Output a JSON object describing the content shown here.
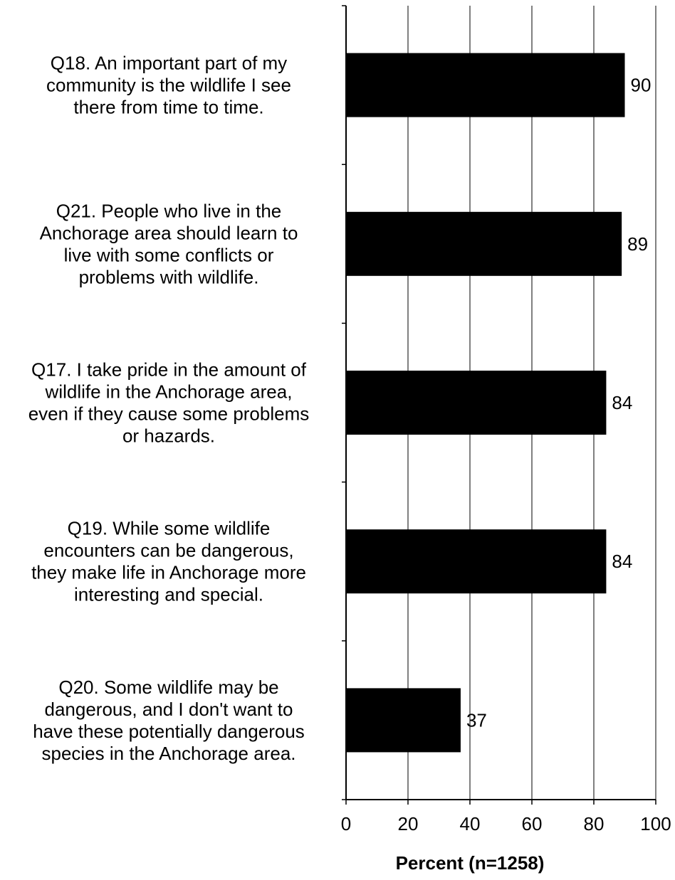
{
  "chart_data": {
    "type": "bar",
    "orientation": "horizontal",
    "categories": [
      [
        "Q18. An important part of my",
        "community is the wildlife I see",
        "there from time to time."
      ],
      [
        "Q21. People who live in the",
        "Anchorage area should learn to",
        "live with some conflicts or",
        "problems with wildlife."
      ],
      [
        "Q17. I take pride in the amount of",
        "wildlife in the Anchorage area,",
        "even if they cause some problems",
        "or hazards."
      ],
      [
        "Q19. While some wildlife",
        "encounters can be dangerous,",
        "they make life in Anchorage more",
        "interesting and special."
      ],
      [
        "Q20. Some wildlife may be",
        "dangerous, and I don't want to",
        "have these potentially dangerous",
        "species in the Anchorage area."
      ]
    ],
    "values": [
      90,
      89,
      84,
      84,
      37
    ],
    "value_labels": [
      "90",
      "89",
      "84",
      "84",
      "37"
    ],
    "xlabel": "Percent (n=1258)",
    "xlim": [
      0,
      100
    ],
    "xticks": [
      0,
      20,
      40,
      60,
      80,
      100
    ],
    "xtick_labels": [
      "0",
      "20",
      "40",
      "60",
      "80",
      "100"
    ],
    "grid": "vertical",
    "bar_color": "#000000",
    "grid_color": "#000000"
  }
}
